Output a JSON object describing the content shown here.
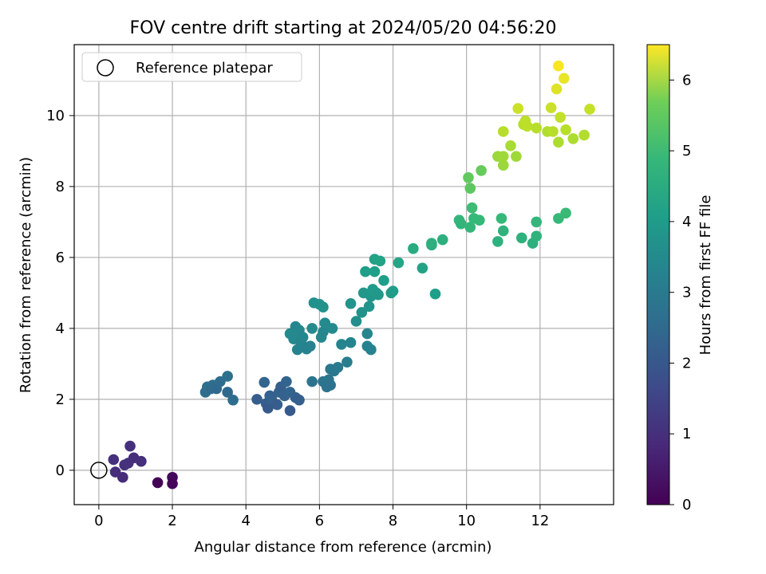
{
  "chart_data": {
    "type": "scatter",
    "title": "FOV centre drift starting at 2024/05/20 04:56:20",
    "xlabel": "Angular distance from reference (arcmin)",
    "ylabel": "Rotation from reference (arcmin)",
    "xlim": [
      -0.67,
      14.0
    ],
    "ylim": [
      -0.97,
      12.0
    ],
    "xticks": [
      0,
      2,
      4,
      6,
      8,
      10,
      12
    ],
    "yticks": [
      0,
      2,
      4,
      6,
      8,
      10
    ],
    "grid": true,
    "legend": {
      "placement": "upper-left",
      "entries": [
        "Reference platepar"
      ]
    },
    "colorbar": {
      "label": "Hours from first FF file",
      "colormap": "viridis",
      "range": [
        0,
        6.5
      ],
      "ticks": [
        0,
        1,
        2,
        3,
        4,
        5,
        6
      ]
    },
    "reference_point": {
      "x": 0,
      "y": 0,
      "label": "Reference platepar"
    },
    "series": [
      {
        "points": [
          [
            1.6,
            -0.35,
            0.05
          ],
          [
            2.0,
            -0.2,
            0.15
          ],
          [
            2.0,
            -0.38,
            0.1
          ],
          [
            0.4,
            0.3,
            0.9
          ],
          [
            0.45,
            -0.05,
            0.85
          ],
          [
            0.65,
            -0.2,
            0.8
          ],
          [
            0.7,
            0.15,
            0.9
          ],
          [
            0.8,
            0.2,
            0.95
          ],
          [
            0.85,
            0.68,
            0.9
          ],
          [
            0.95,
            0.35,
            0.85
          ],
          [
            1.15,
            0.25,
            0.9
          ],
          [
            2.9,
            2.2,
            2.3
          ],
          [
            2.95,
            2.35,
            2.35
          ],
          [
            3.05,
            2.3,
            2.25
          ],
          [
            3.1,
            2.4,
            2.3
          ],
          [
            3.2,
            2.3,
            2.2
          ],
          [
            3.3,
            2.5,
            2.3
          ],
          [
            3.5,
            2.65,
            2.4
          ],
          [
            3.5,
            2.2,
            2.2
          ],
          [
            3.65,
            1.98,
            2.3
          ],
          [
            4.3,
            2.0,
            1.9
          ],
          [
            4.5,
            2.48,
            2.1
          ],
          [
            4.55,
            1.88,
            1.9
          ],
          [
            4.6,
            1.75,
            1.85
          ],
          [
            4.65,
            2.1,
            2.0
          ],
          [
            4.7,
            2.0,
            2.0
          ],
          [
            4.85,
            1.85,
            1.9
          ],
          [
            4.9,
            2.2,
            2.0
          ],
          [
            4.95,
            2.35,
            1.95
          ],
          [
            5.05,
            2.1,
            2.0
          ],
          [
            5.1,
            2.5,
            2.1
          ],
          [
            5.2,
            2.2,
            2.1
          ],
          [
            5.2,
            1.68,
            1.85
          ],
          [
            5.35,
            2.05,
            2.0
          ],
          [
            5.45,
            1.98,
            1.95
          ],
          [
            5.2,
            3.85,
            3.1
          ],
          [
            5.3,
            3.7,
            3.05
          ],
          [
            5.35,
            4.05,
            3.0
          ],
          [
            5.4,
            3.4,
            2.9
          ],
          [
            5.45,
            3.95,
            3.05
          ],
          [
            5.5,
            3.6,
            2.95
          ],
          [
            5.55,
            3.75,
            3.0
          ],
          [
            5.65,
            3.42,
            2.9
          ],
          [
            5.75,
            3.5,
            2.9
          ],
          [
            5.8,
            2.5,
            2.5
          ],
          [
            5.8,
            4.0,
            3.1
          ],
          [
            5.85,
            4.72,
            3.25
          ],
          [
            6.0,
            4.68,
            3.3
          ],
          [
            6.05,
            3.75,
            3.05
          ],
          [
            6.1,
            3.9,
            3.0
          ],
          [
            6.1,
            4.6,
            3.3
          ],
          [
            6.1,
            2.5,
            2.5
          ],
          [
            6.15,
            4.15,
            3.1
          ],
          [
            6.2,
            2.35,
            2.45
          ],
          [
            6.25,
            2.55,
            2.55
          ],
          [
            6.3,
            2.4,
            2.45
          ],
          [
            6.3,
            2.85,
            2.6
          ],
          [
            6.35,
            4.0,
            3.1
          ],
          [
            6.4,
            2.8,
            2.6
          ],
          [
            6.5,
            2.9,
            2.65
          ],
          [
            6.6,
            3.55,
            2.95
          ],
          [
            6.75,
            3.05,
            2.75
          ],
          [
            6.85,
            3.6,
            2.95
          ],
          [
            6.85,
            4.7,
            3.35
          ],
          [
            7.0,
            4.2,
            3.2
          ],
          [
            7.15,
            4.45,
            3.3
          ],
          [
            7.2,
            5.0,
            3.45
          ],
          [
            7.25,
            5.6,
            3.6
          ],
          [
            7.3,
            3.5,
            2.9
          ],
          [
            7.3,
            3.85,
            3.0
          ],
          [
            7.35,
            4.62,
            3.35
          ],
          [
            7.4,
            3.4,
            2.9
          ],
          [
            7.4,
            4.9,
            3.4
          ],
          [
            7.45,
            5.1,
            3.5
          ],
          [
            7.5,
            5.6,
            3.65
          ],
          [
            7.5,
            5.95,
            3.7
          ],
          [
            7.55,
            5.0,
            3.5
          ],
          [
            7.6,
            4.95,
            3.45
          ],
          [
            7.65,
            5.9,
            3.75
          ],
          [
            7.75,
            5.35,
            3.6
          ],
          [
            7.95,
            5.0,
            3.55
          ],
          [
            8.0,
            5.05,
            3.55
          ],
          [
            8.15,
            5.85,
            3.8
          ],
          [
            8.55,
            6.25,
            3.95
          ],
          [
            8.8,
            5.7,
            3.75
          ],
          [
            9.05,
            6.35,
            4.0
          ],
          [
            9.05,
            6.4,
            4.1
          ],
          [
            9.15,
            4.97,
            3.6
          ],
          [
            9.35,
            6.5,
            4.1
          ],
          [
            9.8,
            7.05,
            4.3
          ],
          [
            9.85,
            6.95,
            4.25
          ],
          [
            10.05,
            8.25,
            4.9
          ],
          [
            10.1,
            6.85,
            4.3
          ],
          [
            10.1,
            7.95,
            4.85
          ],
          [
            10.15,
            7.4,
            4.45
          ],
          [
            10.2,
            7.1,
            4.35
          ],
          [
            10.35,
            7.05,
            4.35
          ],
          [
            10.4,
            8.45,
            4.95
          ],
          [
            10.85,
            6.45,
            4.15
          ],
          [
            10.95,
            7.1,
            4.35
          ],
          [
            11.0,
            6.75,
            4.2
          ],
          [
            11.5,
            6.55,
            4.15
          ],
          [
            11.8,
            6.4,
            4.1
          ],
          [
            11.9,
            6.6,
            4.2
          ],
          [
            11.9,
            7.0,
            4.3
          ],
          [
            12.5,
            7.1,
            4.35
          ],
          [
            12.7,
            7.25,
            4.4
          ],
          [
            10.85,
            8.85,
            5.5
          ],
          [
            11.0,
            8.6,
            5.5
          ],
          [
            11.0,
            8.85,
            5.55
          ],
          [
            11.0,
            9.55,
            5.8
          ],
          [
            11.2,
            9.15,
            5.65
          ],
          [
            11.35,
            8.85,
            5.55
          ],
          [
            11.4,
            10.2,
            6.0
          ],
          [
            11.55,
            9.75,
            5.8
          ],
          [
            11.6,
            9.85,
            5.85
          ],
          [
            11.65,
            9.7,
            5.85
          ],
          [
            11.9,
            9.65,
            5.8
          ],
          [
            12.2,
            9.55,
            5.75
          ],
          [
            12.3,
            10.22,
            6.0
          ],
          [
            12.35,
            9.55,
            5.8
          ],
          [
            12.5,
            9.25,
            5.7
          ],
          [
            12.55,
            9.95,
            5.9
          ],
          [
            12.7,
            9.6,
            5.8
          ],
          [
            12.9,
            9.35,
            5.7
          ],
          [
            13.2,
            9.45,
            5.75
          ],
          [
            13.35,
            10.18,
            5.95
          ],
          [
            12.45,
            10.75,
            6.2
          ],
          [
            12.5,
            11.4,
            6.45
          ],
          [
            12.65,
            11.05,
            6.3
          ]
        ]
      }
    ]
  }
}
